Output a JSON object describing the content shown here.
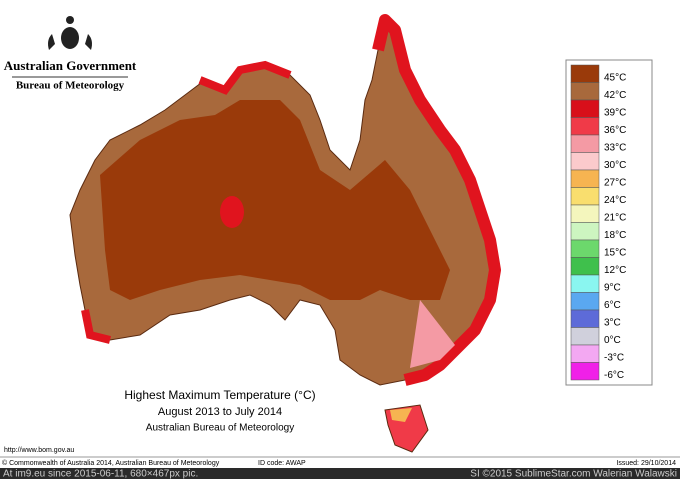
{
  "header": {
    "government": "Australian Government",
    "agency": "Bureau of Meteorology"
  },
  "map": {
    "title": "Highest Maximum Temperature (°C)",
    "period": "August 2013 to July 2014",
    "source": "Australian Bureau of Meteorology",
    "url": "http://www.bom.gov.au"
  },
  "legend": [
    {
      "label": "45°C",
      "color": "#9a3a0a"
    },
    {
      "label": "42°C",
      "color": "#a8693c"
    },
    {
      "label": "39°C",
      "color": "#d80f1a"
    },
    {
      "label": "36°C",
      "color": "#f03a48"
    },
    {
      "label": "33°C",
      "color": "#f49aa4"
    },
    {
      "label": "30°C",
      "color": "#fbcacc"
    },
    {
      "label": "27°C",
      "color": "#f6b451"
    },
    {
      "label": "24°C",
      "color": "#f9de6e"
    },
    {
      "label": "21°C",
      "color": "#f4f6bd"
    },
    {
      "label": "18°C",
      "color": "#cdf5c0"
    },
    {
      "label": "15°C",
      "color": "#6cd86c"
    },
    {
      "label": "12°C",
      "color": "#3fc04c"
    },
    {
      "label": "9°C",
      "color": "#8af6f0"
    },
    {
      "label": "6°C",
      "color": "#5aa8f0"
    },
    {
      "label": "3°C",
      "color": "#5d6bd8"
    },
    {
      "label": "0°C",
      "color": "#d0d0dc"
    },
    {
      "label": "-3°C",
      "color": "#f3a8f2"
    },
    {
      "label": "-6°C",
      "color": "#f020e8"
    }
  ],
  "footer": {
    "copyright": "© Commonwealth of Australia 2014, Australian Bureau of Meteorology",
    "id_code": "ID code: AWAP",
    "issued": "Issued: 29/10/2014"
  },
  "watermark": {
    "left": "At im9.eu since 2015-06-11, 680×467px pic.",
    "right": "SI ©2015 SublimeStar.com Walerian Walawski"
  }
}
